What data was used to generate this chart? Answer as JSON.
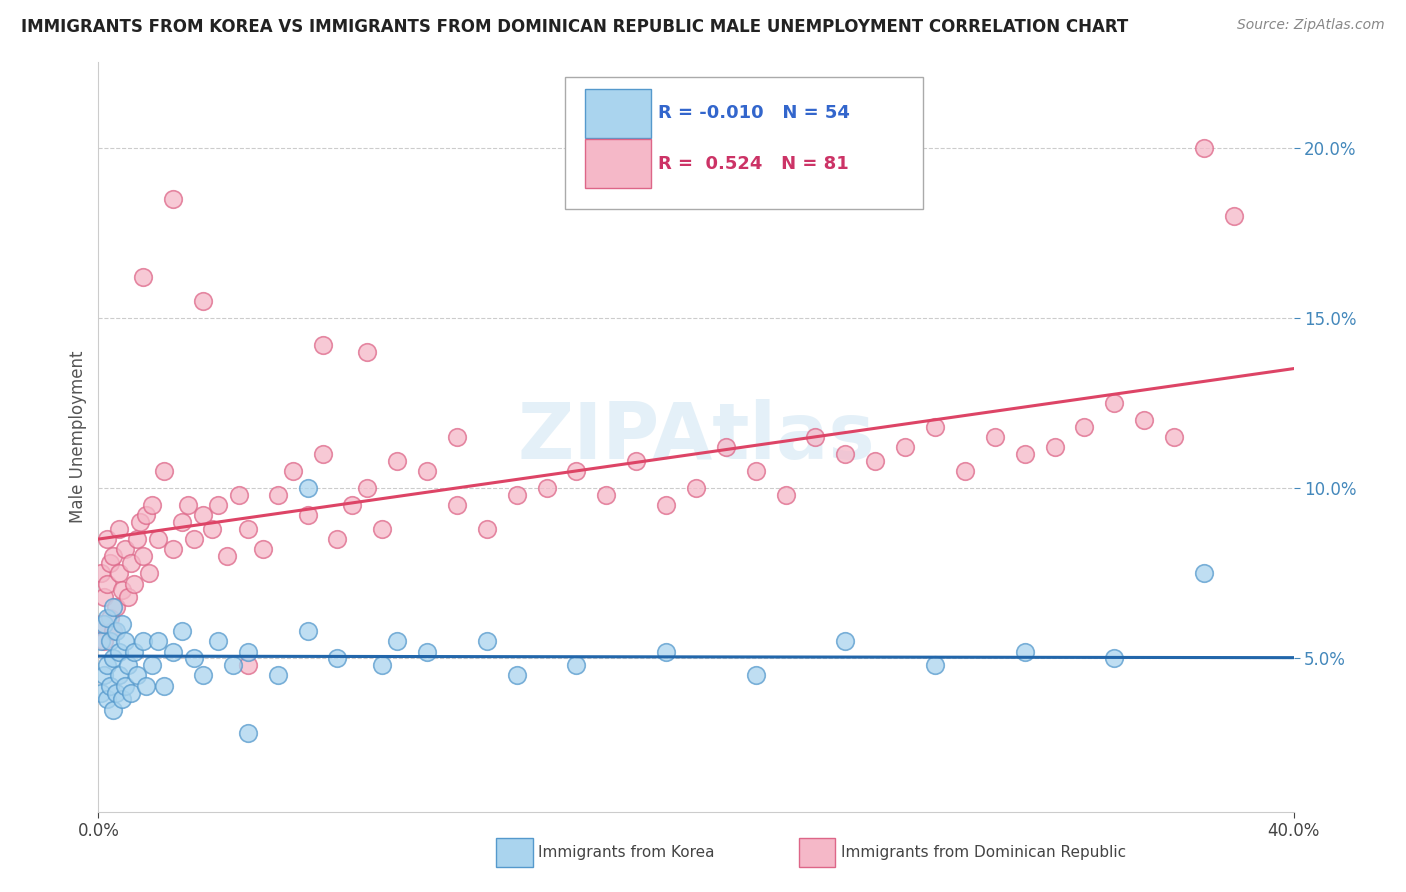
{
  "title": "IMMIGRANTS FROM KOREA VS IMMIGRANTS FROM DOMINICAN REPUBLIC MALE UNEMPLOYMENT CORRELATION CHART",
  "source": "Source: ZipAtlas.com",
  "ylabel": "Male Unemployment",
  "y_ticks": [
    0.05,
    0.1,
    0.15,
    0.2
  ],
  "y_tick_labels": [
    "5.0%",
    "10.0%",
    "15.0%",
    "20.0%"
  ],
  "xlim": [
    0.0,
    0.4
  ],
  "ylim": [
    0.005,
    0.225
  ],
  "korea_R": -0.01,
  "korea_N": 54,
  "dr_R": 0.524,
  "dr_N": 81,
  "korea_color": "#aad4ee",
  "dr_color": "#f5b8c8",
  "korea_edge_color": "#5599cc",
  "dr_edge_color": "#dd6688",
  "korea_line_color": "#2266aa",
  "dr_line_color": "#dd4466",
  "legend_label_korea": "Immigrants from Korea",
  "legend_label_dr": "Immigrants from Dominican Republic",
  "watermark": "ZIPAtlas",
  "korea_scatter_x": [
    0.001,
    0.001,
    0.002,
    0.002,
    0.003,
    0.003,
    0.003,
    0.004,
    0.004,
    0.005,
    0.005,
    0.005,
    0.006,
    0.006,
    0.007,
    0.007,
    0.008,
    0.008,
    0.009,
    0.009,
    0.01,
    0.011,
    0.012,
    0.013,
    0.015,
    0.016,
    0.018,
    0.02,
    0.022,
    0.025,
    0.028,
    0.032,
    0.035,
    0.04,
    0.045,
    0.05,
    0.06,
    0.07,
    0.08,
    0.095,
    0.11,
    0.13,
    0.16,
    0.19,
    0.22,
    0.25,
    0.28,
    0.31,
    0.34,
    0.37,
    0.1,
    0.14,
    0.07,
    0.05
  ],
  "korea_scatter_y": [
    0.055,
    0.04,
    0.045,
    0.06,
    0.048,
    0.038,
    0.062,
    0.042,
    0.055,
    0.035,
    0.05,
    0.065,
    0.04,
    0.058,
    0.045,
    0.052,
    0.038,
    0.06,
    0.042,
    0.055,
    0.048,
    0.04,
    0.052,
    0.045,
    0.055,
    0.042,
    0.048,
    0.055,
    0.042,
    0.052,
    0.058,
    0.05,
    0.045,
    0.055,
    0.048,
    0.052,
    0.045,
    0.058,
    0.05,
    0.048,
    0.052,
    0.055,
    0.048,
    0.052,
    0.045,
    0.055,
    0.048,
    0.052,
    0.05,
    0.075,
    0.055,
    0.045,
    0.1,
    0.028
  ],
  "dr_scatter_x": [
    0.001,
    0.001,
    0.002,
    0.002,
    0.003,
    0.003,
    0.004,
    0.004,
    0.005,
    0.005,
    0.006,
    0.007,
    0.007,
    0.008,
    0.009,
    0.01,
    0.011,
    0.012,
    0.013,
    0.014,
    0.015,
    0.016,
    0.017,
    0.018,
    0.02,
    0.022,
    0.025,
    0.028,
    0.03,
    0.032,
    0.035,
    0.038,
    0.04,
    0.043,
    0.047,
    0.05,
    0.055,
    0.06,
    0.065,
    0.07,
    0.075,
    0.08,
    0.085,
    0.09,
    0.095,
    0.1,
    0.11,
    0.12,
    0.13,
    0.14,
    0.15,
    0.16,
    0.17,
    0.18,
    0.19,
    0.2,
    0.21,
    0.22,
    0.23,
    0.24,
    0.25,
    0.26,
    0.27,
    0.28,
    0.29,
    0.3,
    0.31,
    0.32,
    0.33,
    0.34,
    0.35,
    0.36,
    0.37,
    0.38,
    0.075,
    0.09,
    0.12,
    0.05,
    0.035,
    0.025,
    0.015
  ],
  "dr_scatter_y": [
    0.06,
    0.075,
    0.068,
    0.055,
    0.072,
    0.085,
    0.062,
    0.078,
    0.058,
    0.08,
    0.065,
    0.075,
    0.088,
    0.07,
    0.082,
    0.068,
    0.078,
    0.072,
    0.085,
    0.09,
    0.08,
    0.092,
    0.075,
    0.095,
    0.085,
    0.105,
    0.082,
    0.09,
    0.095,
    0.085,
    0.092,
    0.088,
    0.095,
    0.08,
    0.098,
    0.088,
    0.082,
    0.098,
    0.105,
    0.092,
    0.11,
    0.085,
    0.095,
    0.1,
    0.088,
    0.108,
    0.105,
    0.095,
    0.088,
    0.098,
    0.1,
    0.105,
    0.098,
    0.108,
    0.095,
    0.1,
    0.112,
    0.105,
    0.098,
    0.115,
    0.11,
    0.108,
    0.112,
    0.118,
    0.105,
    0.115,
    0.11,
    0.112,
    0.118,
    0.125,
    0.12,
    0.115,
    0.2,
    0.18,
    0.142,
    0.14,
    0.115,
    0.048,
    0.155,
    0.185,
    0.162
  ]
}
